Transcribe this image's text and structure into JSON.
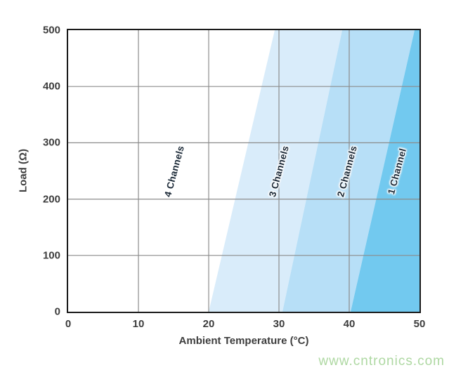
{
  "figure": {
    "watermark": "www.cntronics.com"
  },
  "chart_data": {
    "type": "area",
    "title": "",
    "xlabel": "Ambient Temperature (°C)",
    "ylabel": "Load (Ω)",
    "xlim": [
      0,
      50
    ],
    "ylim": [
      0,
      500
    ],
    "x_ticks": [
      0,
      10,
      20,
      30,
      40,
      50
    ],
    "y_ticks": [
      0,
      100,
      200,
      300,
      400,
      500
    ],
    "grid": true,
    "legend_position": "none",
    "description": "Number of usable channels as diagonal operating regions of load vs ambient temperature",
    "regions": [
      {
        "label": "4 Channels",
        "fill": "#ffffff",
        "boundary_left_temp_at_load_0": 0,
        "boundary_left_temp_at_load_500": 0,
        "label_pos": {
          "temp": 15.1,
          "load": 250
        }
      },
      {
        "label": "3 Channels",
        "fill": "#d9ecfa",
        "boundary_left_temp_at_load_0": 20,
        "boundary_left_temp_at_load_500": 29.4,
        "label_pos": {
          "temp": 30.0,
          "load": 250
        }
      },
      {
        "label": "2 Channels",
        "fill": "#b7dff7",
        "boundary_left_temp_at_load_0": 30.5,
        "boundary_left_temp_at_load_500": 39.0,
        "label_pos": {
          "temp": 39.7,
          "load": 250
        }
      },
      {
        "label": "1 Channel",
        "fill": "#72c9ef",
        "boundary_left_temp_at_load_0": 40.2,
        "boundary_left_temp_at_load_500": 49.3,
        "label_pos": {
          "temp": 46.8,
          "load": 250
        }
      }
    ],
    "colors": {
      "grid": "#8c8c8c",
      "frame": "#1a1a1a",
      "tick_text": "#3d3d3d",
      "region_label_text": "#1c2a38",
      "watermark": "#aed8a2"
    }
  }
}
